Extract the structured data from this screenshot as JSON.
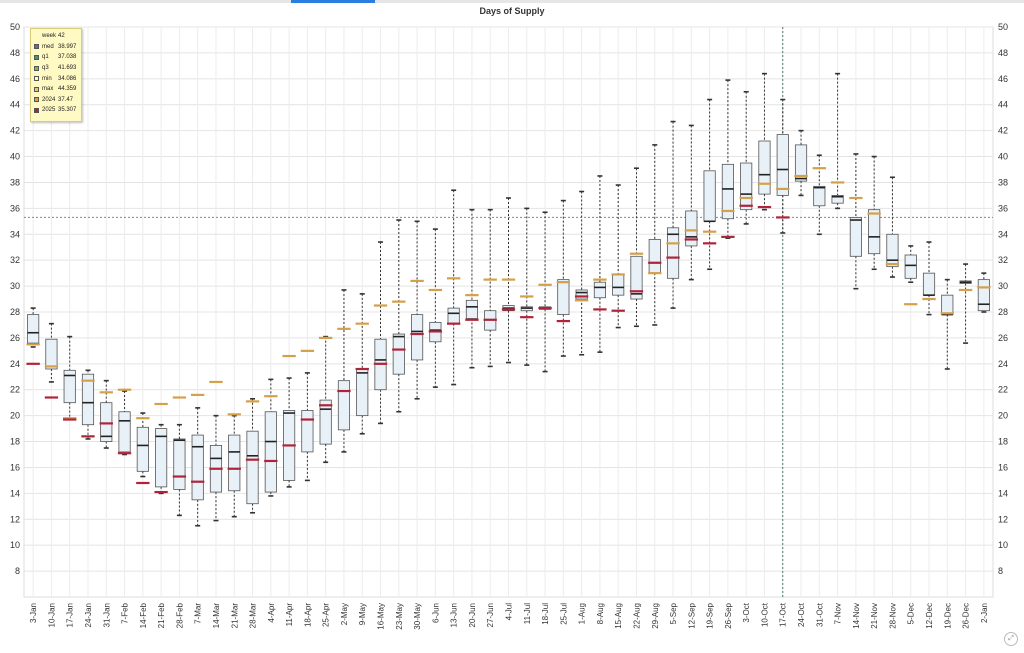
{
  "window": {
    "accent": "#2a7de1"
  },
  "chart_data": {
    "type": "box",
    "title": "Days of Supply",
    "ylim": [
      6,
      50
    ],
    "yticks": [
      8,
      10,
      12,
      14,
      16,
      18,
      20,
      22,
      24,
      26,
      28,
      30,
      32,
      34,
      36,
      38,
      40,
      42,
      44,
      46,
      48,
      50
    ],
    "reference_line": 35.3,
    "highlight_category": "17-Oct",
    "grid": true,
    "legend_position": "top-left tooltip",
    "colors": {
      "box_fill": "#e8f0f8",
      "box_stroke": "#555555",
      "median": "#222222",
      "y2024": "#d4a04a",
      "y2025": "#b0243a"
    },
    "categories": [
      "3-Jan",
      "10-Jan",
      "17-Jan",
      "24-Jan",
      "31-Jan",
      "7-Feb",
      "14-Feb",
      "21-Feb",
      "28-Feb",
      "7-Mar",
      "14-Mar",
      "21-Mar",
      "28-Mar",
      "4-Apr",
      "11-Apr",
      "18-Apr",
      "25-Apr",
      "2-May",
      "9-May",
      "16-May",
      "23-May",
      "30-May",
      "6-Jun",
      "13-Jun",
      "20-Jun",
      "27-Jun",
      "4-Jul",
      "11-Jul",
      "18-Jul",
      "25-Jul",
      "1-Aug",
      "8-Aug",
      "15-Aug",
      "22-Aug",
      "29-Aug",
      "5-Sep",
      "12-Sep",
      "19-Sep",
      "26-Sep",
      "3-Oct",
      "10-Oct",
      "17-Oct",
      "24-Oct",
      "31-Oct",
      "7-Nov",
      "14-Nov",
      "21-Nov",
      "28-Nov",
      "5-Dec",
      "12-Dec",
      "19-Dec",
      "26-Dec",
      "2-Jan"
    ],
    "boxes": [
      {
        "min": 25.3,
        "q1": 25.6,
        "med": 26.4,
        "q3": 27.8,
        "max": 28.3,
        "y2024": 25.5,
        "y2025": 24.0
      },
      {
        "min": 22.6,
        "q1": 23.6,
        "med": 23.8,
        "q3": 25.9,
        "max": 27.1,
        "y2024": 23.8,
        "y2025": 21.4
      },
      {
        "min": 19.8,
        "q1": 21.0,
        "med": 23.1,
        "q3": 23.5,
        "max": 26.1,
        "y2024": 19.8,
        "y2025": 19.7
      },
      {
        "min": 18.2,
        "q1": 19.3,
        "med": 21.0,
        "q3": 23.2,
        "max": 23.5,
        "y2024": 22.7,
        "y2025": 18.4
      },
      {
        "min": 17.5,
        "q1": 18.0,
        "med": 18.4,
        "q3": 21.0,
        "max": 22.7,
        "y2024": 21.8,
        "y2025": 19.4
      },
      {
        "min": 17.0,
        "q1": 17.2,
        "med": 19.6,
        "q3": 20.3,
        "max": 21.9,
        "y2024": 22.0,
        "y2025": 17.1
      },
      {
        "min": 15.3,
        "q1": 15.7,
        "med": 17.7,
        "q3": 19.1,
        "max": 20.2,
        "y2024": 19.8,
        "y2025": 14.8
      },
      {
        "min": 14.0,
        "q1": 14.5,
        "med": 18.4,
        "q3": 19.0,
        "max": 19.3,
        "y2024": 20.9,
        "y2025": 14.1
      },
      {
        "min": 12.3,
        "q1": 14.3,
        "med": 18.1,
        "q3": 18.2,
        "max": 19.3,
        "y2024": 21.4,
        "y2025": 15.3
      },
      {
        "min": 11.5,
        "q1": 13.5,
        "med": 17.6,
        "q3": 18.5,
        "max": 20.6,
        "y2024": 21.6,
        "y2025": 14.9
      },
      {
        "min": 11.9,
        "q1": 14.1,
        "med": 16.7,
        "q3": 17.7,
        "max": 20.0,
        "y2024": 22.6,
        "y2025": 15.9
      },
      {
        "min": 12.2,
        "q1": 14.2,
        "med": 17.2,
        "q3": 18.5,
        "max": 20.0,
        "y2024": 20.1,
        "y2025": 15.9
      },
      {
        "min": 12.5,
        "q1": 13.2,
        "med": 16.9,
        "q3": 18.8,
        "max": 21.3,
        "y2024": 21.1,
        "y2025": 16.6
      },
      {
        "min": 13.8,
        "q1": 14.1,
        "med": 18.0,
        "q3": 20.3,
        "max": 22.8,
        "y2024": 21.5,
        "y2025": 16.5
      },
      {
        "min": 14.5,
        "q1": 15.0,
        "med": 20.2,
        "q3": 20.4,
        "max": 22.9,
        "y2024": 24.6,
        "y2025": 17.7
      },
      {
        "min": 15.0,
        "q1": 17.2,
        "med": 19.7,
        "q3": 20.4,
        "max": 23.3,
        "y2024": 25.0,
        "y2025": 19.7
      },
      {
        "min": 16.4,
        "q1": 17.8,
        "med": 20.5,
        "q3": 21.2,
        "max": 26.1,
        "y2024": 26.0,
        "y2025": 20.8
      },
      {
        "min": 17.2,
        "q1": 18.9,
        "med": 21.9,
        "q3": 22.7,
        "max": 29.7,
        "y2024": 26.7,
        "y2025": 21.9
      },
      {
        "min": 18.6,
        "q1": 20.0,
        "med": 23.3,
        "q3": 23.6,
        "max": 29.4,
        "y2024": 27.1,
        "y2025": 23.6
      },
      {
        "min": 19.4,
        "q1": 22.0,
        "med": 24.3,
        "q3": 25.9,
        "max": 33.4,
        "y2024": 28.5,
        "y2025": 24.0
      },
      {
        "min": 20.3,
        "q1": 23.2,
        "med": 26.1,
        "q3": 26.3,
        "max": 35.1,
        "y2024": 28.8,
        "y2025": 25.1
      },
      {
        "min": 21.3,
        "q1": 24.3,
        "med": 26.5,
        "q3": 27.8,
        "max": 35.0,
        "y2024": 30.4,
        "y2025": 26.3
      },
      {
        "min": 22.2,
        "q1": 25.7,
        "med": 26.6,
        "q3": 27.2,
        "max": 34.4,
        "y2024": 29.7,
        "y2025": 26.5
      },
      {
        "min": 22.4,
        "q1": 27.1,
        "med": 27.9,
        "q3": 28.3,
        "max": 37.4,
        "y2024": 30.6,
        "y2025": 27.1
      },
      {
        "min": 23.7,
        "q1": 27.5,
        "med": 28.4,
        "q3": 28.9,
        "max": 35.9,
        "y2024": 29.3,
        "y2025": 27.4
      },
      {
        "min": 23.8,
        "q1": 26.6,
        "med": 27.4,
        "q3": 28.1,
        "max": 35.9,
        "y2024": 30.5,
        "y2025": 27.4
      },
      {
        "min": 24.1,
        "q1": 28.1,
        "med": 28.3,
        "q3": 28.5,
        "max": 36.8,
        "y2024": 30.5,
        "y2025": 28.2
      },
      {
        "min": 23.9,
        "q1": 28.1,
        "med": 28.3,
        "q3": 28.4,
        "max": 36.0,
        "y2024": 29.2,
        "y2025": 27.6
      },
      {
        "min": 23.4,
        "q1": 28.2,
        "med": 28.3,
        "q3": 28.4,
        "max": 35.7,
        "y2024": 30.1,
        "y2025": 28.3
      },
      {
        "min": 24.6,
        "q1": 27.8,
        "med": 30.3,
        "q3": 30.5,
        "max": 36.6,
        "y2024": 30.3,
        "y2025": 27.3
      },
      {
        "min": 24.7,
        "q1": 29.0,
        "med": 29.5,
        "q3": 29.7,
        "max": 37.3,
        "y2024": 28.9,
        "y2025": 29.2
      },
      {
        "min": 24.9,
        "q1": 29.1,
        "med": 29.9,
        "q3": 30.3,
        "max": 38.5,
        "y2024": 30.5,
        "y2025": 28.2
      },
      {
        "min": 26.8,
        "q1": 29.3,
        "med": 29.9,
        "q3": 30.9,
        "max": 37.8,
        "y2024": 30.9,
        "y2025": 28.1
      },
      {
        "min": 26.9,
        "q1": 29.0,
        "med": 29.4,
        "q3": 32.3,
        "max": 39.1,
        "y2024": 32.5,
        "y2025": 29.6
      },
      {
        "min": 27.0,
        "q1": 31.0,
        "med": 31.8,
        "q3": 33.6,
        "max": 40.9,
        "y2024": 31.0,
        "y2025": 31.8
      },
      {
        "min": 28.3,
        "q1": 30.6,
        "med": 34.0,
        "q3": 34.5,
        "max": 42.7,
        "y2024": 33.3,
        "y2025": 32.2
      },
      {
        "min": 30.5,
        "q1": 33.1,
        "med": 33.8,
        "q3": 35.8,
        "max": 42.4,
        "y2024": 34.3,
        "y2025": 33.6
      },
      {
        "min": 31.3,
        "q1": 35.0,
        "med": 35.0,
        "q3": 38.9,
        "max": 44.4,
        "y2024": 34.2,
        "y2025": 33.3
      },
      {
        "min": 33.7,
        "q1": 35.2,
        "med": 37.5,
        "q3": 39.4,
        "max": 45.9,
        "y2024": 35.8,
        "y2025": 33.8
      },
      {
        "min": 34.8,
        "q1": 35.9,
        "med": 37.1,
        "q3": 39.5,
        "max": 45.0,
        "y2024": 36.8,
        "y2025": 36.2
      },
      {
        "min": 35.9,
        "q1": 37.1,
        "med": 38.6,
        "q3": 41.2,
        "max": 46.4,
        "y2024": 37.9,
        "y2025": 36.1
      },
      {
        "min": 34.1,
        "q1": 37.0,
        "med": 39.0,
        "q3": 41.7,
        "max": 44.4,
        "y2024": 37.5,
        "y2025": 35.3
      },
      {
        "min": 37.0,
        "q1": 38.1,
        "med": 38.3,
        "q3": 40.9,
        "max": 42.0,
        "y2024": 38.5,
        "y2025": null
      },
      {
        "min": 34.0,
        "q1": 36.2,
        "med": 37.6,
        "q3": 37.7,
        "max": 40.1,
        "y2024": 39.1,
        "y2025": null
      },
      {
        "min": 36.0,
        "q1": 36.4,
        "med": 36.9,
        "q3": 37.0,
        "max": 46.4,
        "y2024": 38.0,
        "y2025": null
      },
      {
        "min": 29.8,
        "q1": 32.3,
        "med": 35.1,
        "q3": 35.3,
        "max": 40.2,
        "y2024": 36.8,
        "y2025": null
      },
      {
        "min": 31.3,
        "q1": 32.5,
        "med": 33.8,
        "q3": 35.9,
        "max": 40.0,
        "y2024": 35.6,
        "y2025": null
      },
      {
        "min": 30.7,
        "q1": 31.5,
        "med": 32.0,
        "q3": 34.0,
        "max": 38.4,
        "y2024": 31.7,
        "y2025": null
      },
      {
        "min": 30.3,
        "q1": 30.6,
        "med": 31.6,
        "q3": 32.4,
        "max": 33.1,
        "y2024": 28.6,
        "y2025": null
      },
      {
        "min": 27.8,
        "q1": 29.3,
        "med": 29.3,
        "q3": 31.0,
        "max": 33.4,
        "y2024": 29.0,
        "y2025": null
      },
      {
        "min": 23.6,
        "q1": 27.8,
        "med": 27.8,
        "q3": 29.3,
        "max": 30.5,
        "y2024": 27.9,
        "y2025": null
      },
      {
        "min": 25.6,
        "q1": 30.2,
        "med": 30.3,
        "q3": 30.4,
        "max": 31.7,
        "y2024": 29.7,
        "y2025": null
      },
      {
        "min": 28.0,
        "q1": 28.1,
        "med": 28.6,
        "q3": 30.5,
        "max": 31.0,
        "y2024": 29.9,
        "y2025": null
      }
    ]
  },
  "tooltip": {
    "rows": [
      {
        "label": "week",
        "value": "42",
        "swatch": ""
      },
      {
        "label": "med",
        "value": "38.997",
        "swatch": "#5b6fa8"
      },
      {
        "label": "q1",
        "value": "37.038",
        "swatch": "#3a9a7a"
      },
      {
        "label": "q3",
        "value": "41.693",
        "swatch": "#7ab95a"
      },
      {
        "label": "min",
        "value": "34.086",
        "swatch": "#fff9c4"
      },
      {
        "label": "max",
        "value": "44.359",
        "swatch": "#e8c46a"
      },
      {
        "label": "2024",
        "value": "37.47",
        "swatch": "#d4a04a"
      },
      {
        "label": "2025",
        "value": "35.307",
        "swatch": "#b0243a"
      }
    ]
  },
  "icons": {
    "resize": "resize-icon"
  },
  "resize_glyph": "⤢"
}
